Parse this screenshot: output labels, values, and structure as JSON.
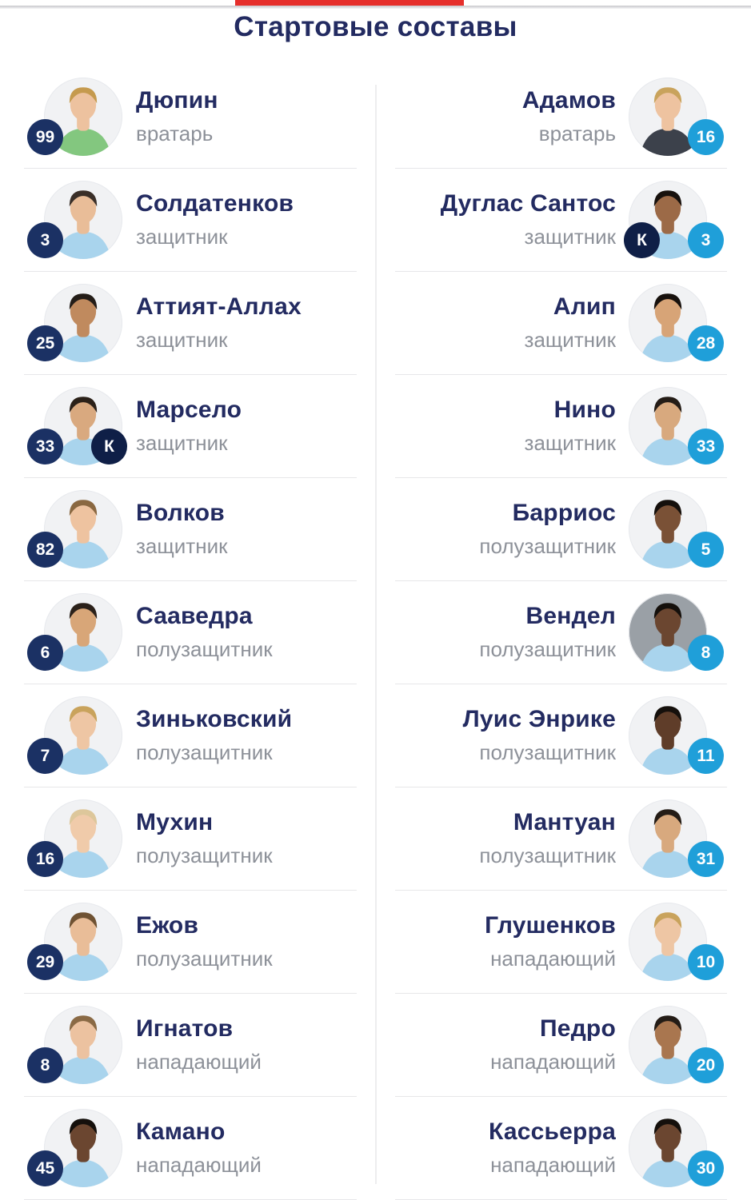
{
  "header": {
    "title": "Стартовые составы"
  },
  "labels": {
    "captain": "К"
  },
  "colors": {
    "accent_red": "#e62f2c",
    "name_text": "#232b61",
    "position_text": "#8d9199",
    "home_badge": "#1b3164",
    "away_badge": "#1f9fd9",
    "captain_badge": "#0f1f47",
    "badge_text": "#ffffff",
    "divider": "#e7e7e9",
    "avatar_ring": "#e7e9ed",
    "avatar_bg": "#f1f2f4"
  },
  "teams": {
    "home": {
      "players": [
        {
          "name": "Дюпин",
          "number": "99",
          "position": "вратарь",
          "captain": false,
          "avatar": {
            "skin": "#edc29f",
            "hair": "#c59a4e",
            "jersey": "#83c77f"
          }
        },
        {
          "name": "Солдатенков",
          "number": "3",
          "position": "защитник",
          "captain": false,
          "avatar": {
            "skin": "#e9bd98",
            "hair": "#3a2f28",
            "jersey": "#a9d4ed"
          }
        },
        {
          "name": "Аттият-Аллах",
          "number": "25",
          "position": "защитник",
          "captain": false,
          "avatar": {
            "skin": "#c08a5e",
            "hair": "#241d18",
            "jersey": "#a9d4ed"
          }
        },
        {
          "name": "Марсело",
          "number": "33",
          "position": "защитник",
          "captain": true,
          "avatar": {
            "skin": "#d9a97f",
            "hair": "#2b2119",
            "jersey": "#a9d4ed"
          }
        },
        {
          "name": "Волков",
          "number": "82",
          "position": "защитник",
          "captain": false,
          "avatar": {
            "skin": "#eec3a0",
            "hair": "#8a6841",
            "jersey": "#a9d4ed"
          }
        },
        {
          "name": "Сааведра",
          "number": "6",
          "position": "полузащитник",
          "captain": false,
          "avatar": {
            "skin": "#d8a678",
            "hair": "#2b211a",
            "jersey": "#a9d4ed"
          }
        },
        {
          "name": "Зиньковский",
          "number": "7",
          "position": "полузащитник",
          "captain": false,
          "avatar": {
            "skin": "#eec6a4",
            "hair": "#c9a35c",
            "jersey": "#a9d4ed"
          }
        },
        {
          "name": "Мухин",
          "number": "16",
          "position": "полузащитник",
          "captain": false,
          "avatar": {
            "skin": "#f0cbaa",
            "hair": "#ddc79b",
            "jersey": "#a9d4ed"
          }
        },
        {
          "name": "Ежов",
          "number": "29",
          "position": "полузащитник",
          "captain": false,
          "avatar": {
            "skin": "#e9bd98",
            "hair": "#6f5233",
            "jersey": "#a9d4ed"
          }
        },
        {
          "name": "Игнатов",
          "number": "8",
          "position": "нападающий",
          "captain": false,
          "avatar": {
            "skin": "#ecc2a0",
            "hair": "#8a6a45",
            "jersey": "#a9d4ed"
          }
        },
        {
          "name": "Камано",
          "number": "45",
          "position": "нападающий",
          "captain": false,
          "avatar": {
            "skin": "#6b4630",
            "hair": "#15100c",
            "jersey": "#a9d4ed"
          }
        }
      ]
    },
    "away": {
      "players": [
        {
          "name": "Адамов",
          "number": "16",
          "position": "вратарь",
          "captain": false,
          "avatar": {
            "skin": "#eec3a0",
            "hair": "#c9a35c",
            "jersey": "#3c414b"
          }
        },
        {
          "name": "Дуглас Сантос",
          "number": "3",
          "position": "защитник",
          "captain": true,
          "avatar": {
            "skin": "#9c6a47",
            "hair": "#17110d",
            "jersey": "#a9d4ed"
          }
        },
        {
          "name": "Алип",
          "number": "28",
          "position": "защитник",
          "captain": false,
          "avatar": {
            "skin": "#d7a477",
            "hair": "#17110d",
            "jersey": "#a9d4ed"
          }
        },
        {
          "name": "Нино",
          "number": "33",
          "position": "защитник",
          "captain": false,
          "avatar": {
            "skin": "#d8a97e",
            "hair": "#241c16",
            "jersey": "#a9d4ed"
          }
        },
        {
          "name": "Барриос",
          "number": "5",
          "position": "полузащитник",
          "captain": false,
          "avatar": {
            "skin": "#7a5136",
            "hair": "#15100c",
            "jersey": "#a9d4ed"
          }
        },
        {
          "name": "Вендел",
          "number": "8",
          "position": "полузащитник",
          "captain": false,
          "avatar": {
            "skin": "#6b4630",
            "hair": "#15100c",
            "jersey": "#a9d4ed",
            "bg": "#9aa0a6"
          }
        },
        {
          "name": "Луис Энрике",
          "number": "11",
          "position": "полузащитник",
          "captain": false,
          "avatar": {
            "skin": "#5f3d29",
            "hair": "#15100c",
            "jersey": "#a9d4ed"
          }
        },
        {
          "name": "Мантуан",
          "number": "31",
          "position": "полузащитник",
          "captain": false,
          "avatar": {
            "skin": "#d8a97e",
            "hair": "#241c16",
            "jersey": "#a9d4ed"
          }
        },
        {
          "name": "Глушенков",
          "number": "10",
          "position": "нападающий",
          "captain": false,
          "avatar": {
            "skin": "#eec6a4",
            "hair": "#c9a35c",
            "jersey": "#a9d4ed"
          }
        },
        {
          "name": "Педро",
          "number": "20",
          "position": "нападающий",
          "captain": false,
          "avatar": {
            "skin": "#a9764f",
            "hair": "#241c16",
            "jersey": "#a9d4ed"
          }
        },
        {
          "name": "Кассьерра",
          "number": "30",
          "position": "нападающий",
          "captain": false,
          "avatar": {
            "skin": "#6b4630",
            "hair": "#15100c",
            "jersey": "#a9d4ed"
          }
        }
      ]
    }
  }
}
